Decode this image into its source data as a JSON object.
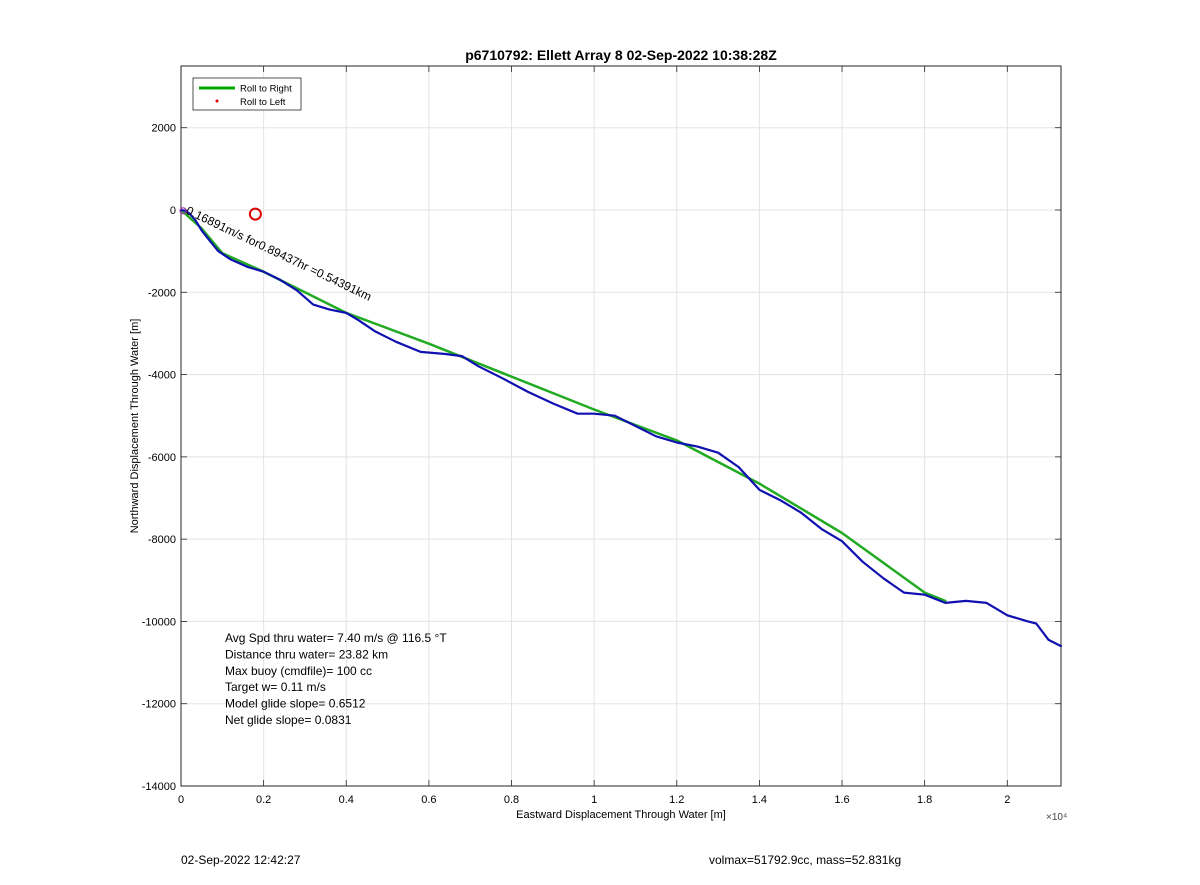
{
  "chart_data": {
    "type": "line",
    "title": "p6710792: Ellett Array 8 02-Sep-2022 10:38:28Z",
    "xlabel": "Eastward Displacement Through Water [m]",
    "ylabel": "Northward Displacement Through Water [m]",
    "x_multiplier_label": "×10⁴",
    "xlim": [
      0,
      21300
    ],
    "ylim": [
      -14000,
      3500
    ],
    "x_ticks": [
      0,
      2000,
      4000,
      6000,
      8000,
      10000,
      12000,
      14000,
      16000,
      18000,
      20000
    ],
    "x_tick_labels": [
      "0",
      "0.2",
      "0.4",
      "0.6",
      "0.8",
      "1",
      "1.2",
      "1.4",
      "1.6",
      "1.8",
      "2"
    ],
    "y_ticks": [
      2000,
      0,
      -2000,
      -4000,
      -6000,
      -8000,
      -10000,
      -12000,
      -14000
    ],
    "y_tick_labels": [
      "2000",
      "0",
      "-2000",
      "-4000",
      "-6000",
      "-8000",
      "-10000",
      "-12000",
      "-14000"
    ],
    "grid": true,
    "legend_position": "top-left",
    "legend": [
      {
        "label": "Roll to Right",
        "color": "#00aa00",
        "style": "line"
      },
      {
        "label": "Roll to Left",
        "color": "#dd0000",
        "style": "dot"
      }
    ],
    "series": [
      {
        "name": "Roll to Right",
        "color": "#22aa22",
        "x": [
          0,
          500,
          1000,
          2000,
          4000,
          6000,
          8000,
          10000,
          12000,
          14000,
          16000,
          18000,
          18500
        ],
        "y": [
          0,
          -450,
          -1050,
          -1500,
          -2500,
          -3250,
          -4050,
          -4850,
          -5600,
          -6650,
          -7850,
          -9300,
          -9500
        ]
      },
      {
        "color": "#1010b0",
        "x": [
          0,
          100,
          200,
          350,
          500,
          700,
          900,
          1200,
          1600,
          2000,
          2400,
          2800,
          3200,
          3600,
          4000,
          4300,
          4700,
          5200,
          5800,
          6400,
          6800,
          7200,
          7800,
          8400,
          9000,
          9600,
          10000,
          10500,
          11000,
          11500,
          12000,
          12500,
          13000,
          13500,
          14000,
          14500,
          15000,
          15500,
          16000,
          16500,
          17000,
          17500,
          18000,
          18500,
          19000,
          19500,
          20000,
          20500,
          20700,
          21000,
          21300
        ],
        "y": [
          0,
          -20,
          -80,
          -250,
          -500,
          -750,
          -1000,
          -1200,
          -1380,
          -1500,
          -1700,
          -1950,
          -2300,
          -2420,
          -2500,
          -2680,
          -2950,
          -3200,
          -3450,
          -3500,
          -3550,
          -3800,
          -4100,
          -4420,
          -4700,
          -4950,
          -4950,
          -5000,
          -5250,
          -5500,
          -5650,
          -5750,
          -5900,
          -6250,
          -6800,
          -7050,
          -7350,
          -7750,
          -8050,
          -8550,
          -8950,
          -9300,
          -9350,
          -9550,
          -9500,
          -9550,
          -9850,
          -10000,
          -10050,
          -10450,
          -10600
        ]
      }
    ],
    "markers": [
      {
        "label": "start-circle",
        "x": 1800,
        "y": -100,
        "color": "#dd0000"
      }
    ],
    "annotations": {
      "rotated_label": "0.16891m/s for0.89437hr =0.54391km",
      "stats": [
        "Avg Spd thru water=  7.40 m/s @ 116.5 °T",
        "Distance thru water= 23.82 km",
        "Max buoy (cmdfile)= 100 cc",
        "Target w= 0.11 m/s",
        "Model glide slope= 0.6512",
        "Net glide slope= 0.0831"
      ]
    }
  },
  "footer": {
    "timestamp": "02-Sep-2022 12:42:27",
    "mass_info": "volmax=51792.9cc, mass=52.831kg"
  }
}
